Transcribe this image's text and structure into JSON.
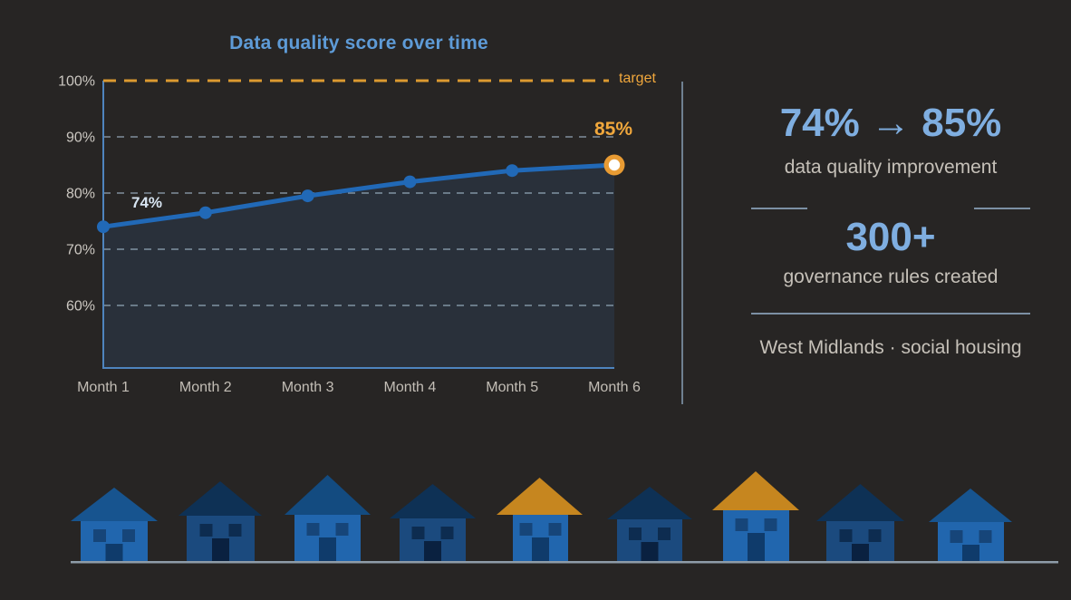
{
  "colors": {
    "bg": "#272524",
    "titleBlue": "#5E9BD7",
    "statBlue": "#7FAEE0",
    "grayText": "#C6C1B9",
    "axisText": "#CBC7C1",
    "catText": "#C3BEB6",
    "orangeText": "#F0A73C",
    "targetOrange": "#DC9A30",
    "lineBlue": "#2169B7",
    "gridline": "#A6BCCF",
    "axisLine": "#4E84BE",
    "areaFill": "rgba(46,78,116,0.28)",
    "separator": "#7C90A4",
    "ground": "#8E9CA8",
    "markerRing": "#E89B33",
    "markerCore": "#FFFFFF",
    "pointLabelLight": "#D8E5F2",
    "houseBright": "#2166AE",
    "houseDark": "#1B4A7E",
    "roofMid": "#17548F",
    "roofNavy": "#0E3155",
    "roofNavyMid": "#134B80",
    "roofOrange": "#C6861F",
    "winOnBright": "#164579",
    "winOnDark": "#0D2C50",
    "doorOnBright": "#0F3B6B",
    "doorOnDark": "#0A2140"
  },
  "chart_data": {
    "type": "line",
    "title": "Data quality score over time",
    "categories": [
      "Month 1",
      "Month 2",
      "Month 3",
      "Month 4",
      "Month 5",
      "Month 6"
    ],
    "series": [
      {
        "name": "data quality score",
        "values": [
          74,
          76.5,
          79.5,
          82,
          84,
          85
        ]
      }
    ],
    "point_labels": [
      {
        "index": 0,
        "text": "74%"
      },
      {
        "index": 5,
        "text": "85%"
      }
    ],
    "target": {
      "value": 100,
      "label": "target"
    },
    "yticks": [
      "100%",
      "90%",
      "80%",
      "70%",
      "60%"
    ],
    "ytick_values": [
      100,
      90,
      80,
      70,
      60
    ],
    "ylim": [
      48.5,
      100
    ],
    "grid": "horizontal-dashed",
    "legend": "none",
    "last_point_highlight": "orange-ring-white-core"
  },
  "stats": {
    "improvement_value": "74% → 85%",
    "improvement_label": "data quality improvement",
    "rules_value": "300+",
    "rules_label": "governance rules created",
    "footer": "West Midlands · social housing"
  },
  "houses": {
    "count": 9,
    "ground_line": true,
    "items": [
      {
        "roof": "blue-mid",
        "body": "blue-bright"
      },
      {
        "roof": "navy",
        "body": "blue-dark"
      },
      {
        "roof": "navy-mid",
        "body": "blue-bright"
      },
      {
        "roof": "navy",
        "body": "blue-dark"
      },
      {
        "roof": "orange",
        "body": "blue-bright"
      },
      {
        "roof": "navy",
        "body": "blue-dark"
      },
      {
        "roof": "orange",
        "body": "blue-bright"
      },
      {
        "roof": "navy",
        "body": "blue-dark"
      },
      {
        "roof": "blue-mid",
        "body": "blue-bright"
      }
    ]
  }
}
